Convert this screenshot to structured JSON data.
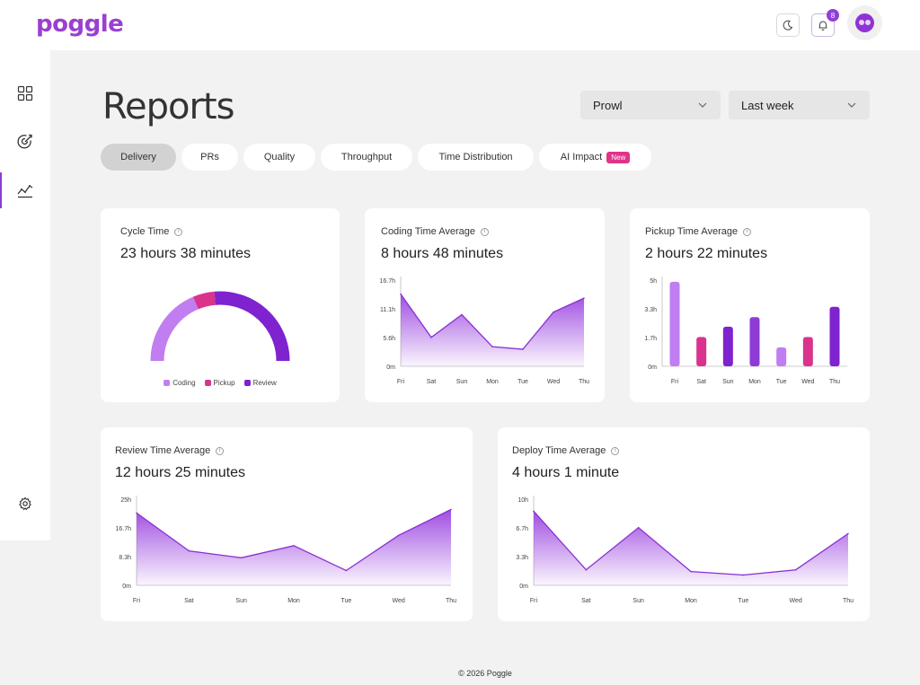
{
  "app": {
    "logo": "poggle"
  },
  "header": {
    "notifications_count": "8",
    "icons": [
      "moon-icon",
      "bell-icon",
      "avatar"
    ]
  },
  "sidebar": {
    "items": [
      {
        "icon": "dashboard-icon",
        "active": false
      },
      {
        "icon": "target-icon",
        "active": false
      },
      {
        "icon": "chart-line-icon",
        "active": true
      },
      {
        "icon": "gear-icon",
        "active": false
      }
    ]
  },
  "page": {
    "title": "Reports"
  },
  "filters": {
    "team": "Prowl",
    "period": "Last week"
  },
  "tabs": [
    {
      "label": "Delivery",
      "active": true
    },
    {
      "label": "PRs"
    },
    {
      "label": "Quality"
    },
    {
      "label": "Throughput"
    },
    {
      "label": "Time Distribution"
    },
    {
      "label": "AI Impact",
      "badge": "New"
    }
  ],
  "cards": {
    "cycle": {
      "title": "Cycle Time",
      "value": "23 hours 38 minutes"
    },
    "coding": {
      "title": "Coding Time Average",
      "value": "8 hours 48 minutes"
    },
    "pickup": {
      "title": "Pickup Time Average",
      "value": "2 hours 22 minutes"
    },
    "review": {
      "title": "Review Time Average",
      "value": "12 hours 25 minutes"
    },
    "deploy": {
      "title": "Deploy Time Average",
      "value": "4 hours 1 minute"
    }
  },
  "colors": {
    "accent": "#8e3bd6",
    "coding": "#c07ef0",
    "pickup": "#d9338b",
    "review": "#7f22cf",
    "area_top": "#9b45e0"
  },
  "chart_data": [
    {
      "id": "cycle",
      "type": "pie",
      "title": "Cycle Time",
      "labels": [
        "Coding",
        "Pickup",
        "Review"
      ],
      "values": [
        8.8,
        2.37,
        12.42
      ],
      "legend": "bottom"
    },
    {
      "id": "coding",
      "type": "area",
      "title": "Coding Time Average",
      "categories": [
        "Fri",
        "Sat",
        "Sun",
        "Mon",
        "Tue",
        "Wed",
        "Thu"
      ],
      "values": [
        14.0,
        5.6,
        10.0,
        3.8,
        3.3,
        10.5,
        13.2
      ],
      "yticks": [
        "0m",
        "5.6h",
        "11.1h",
        "16.7h"
      ],
      "ylim": [
        0,
        16.7
      ]
    },
    {
      "id": "pickup",
      "type": "bar",
      "title": "Pickup Time Average",
      "categories": [
        "Fri",
        "Sat",
        "Sun",
        "Mon",
        "Tue",
        "Wed",
        "Thu"
      ],
      "values": [
        4.9,
        1.7,
        2.3,
        2.85,
        1.1,
        1.7,
        3.45
      ],
      "bar_colors": [
        "#c07ef0",
        "#d9338b",
        "#7f22cf",
        "#8e3bd6",
        "#c07ef0",
        "#d9338b",
        "#7f22cf"
      ],
      "yticks": [
        "0m",
        "1.7h",
        "3.3h",
        "5h"
      ],
      "ylim": [
        0,
        5
      ]
    },
    {
      "id": "review",
      "type": "area",
      "title": "Review Time Average",
      "categories": [
        "Fri",
        "Sat",
        "Sun",
        "Mon",
        "Tue",
        "Wed",
        "Thu"
      ],
      "values": [
        21.0,
        10.0,
        8.0,
        11.5,
        4.3,
        14.5,
        22.0
      ],
      "yticks": [
        "0m",
        "8.3h",
        "16.7h",
        "25h"
      ],
      "ylim": [
        0,
        25
      ]
    },
    {
      "id": "deploy",
      "type": "area",
      "title": "Deploy Time Average",
      "categories": [
        "Fri",
        "Sat",
        "Sun",
        "Mon",
        "Tue",
        "Wed",
        "Thu"
      ],
      "values": [
        8.6,
        1.8,
        6.7,
        1.6,
        1.2,
        1.8,
        6.0
      ],
      "yticks": [
        "0m",
        "3.3h",
        "6.7h",
        "10h"
      ],
      "ylim": [
        0,
        10
      ]
    }
  ],
  "footer": {
    "text": "© 2026 Poggle"
  }
}
